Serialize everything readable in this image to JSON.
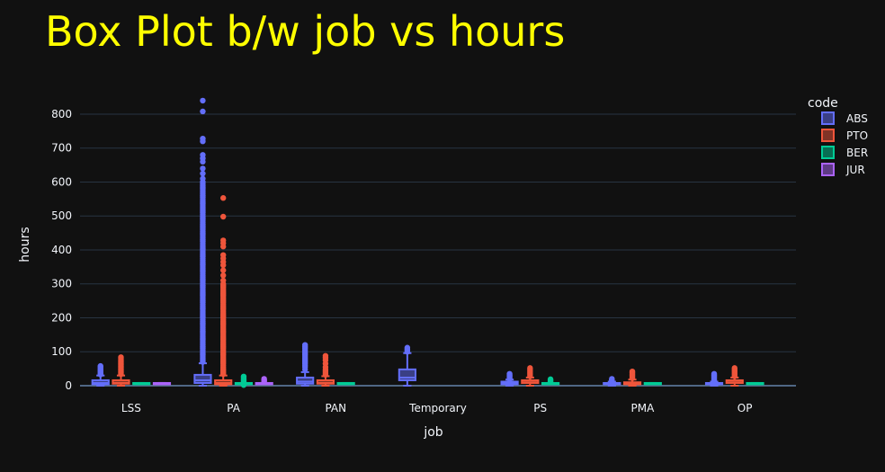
{
  "chart_data": {
    "type": "box",
    "title": "Box Plot b/w job vs hours",
    "xlabel": "job",
    "ylabel": "hours",
    "ylim": [
      0,
      845
    ],
    "yticks": [
      0,
      100,
      200,
      300,
      400,
      500,
      600,
      700,
      800
    ],
    "grid": true,
    "legend": {
      "title": "code",
      "placement": "top-right"
    },
    "categories": [
      "LSS",
      "PA",
      "PAN",
      "Temporary",
      "PS",
      "PMA",
      "OP"
    ],
    "colors": {
      "background": "#111111",
      "grid": "#283442",
      "title": "#ffff00"
    },
    "series": [
      {
        "name": "ABS",
        "color": "#636efa",
        "boxes": [
          {
            "q1": 4,
            "median": 8,
            "q3": 16,
            "lowerfence": 0,
            "upperfence": 30,
            "outliers": [
              33,
              36,
              39,
              42,
              45,
              48,
              51,
              55,
              58
            ]
          },
          {
            "q1": 8,
            "median": 16,
            "q3": 32,
            "lowerfence": 0,
            "upperfence": 66,
            "outliers": [
              70,
              75,
              80,
              85,
              90,
              95,
              100,
              105,
              110,
              115,
              120,
              125,
              130,
              135,
              140,
              145,
              150,
              155,
              160,
              165,
              170,
              175,
              180,
              185,
              190,
              195,
              200,
              205,
              210,
              215,
              220,
              225,
              230,
              235,
              240,
              245,
              250,
              255,
              260,
              265,
              270,
              275,
              280,
              285,
              290,
              295,
              300,
              305,
              310,
              315,
              320,
              325,
              330,
              335,
              340,
              345,
              350,
              355,
              360,
              365,
              370,
              375,
              380,
              385,
              390,
              395,
              400,
              405,
              410,
              415,
              420,
              425,
              430,
              435,
              440,
              445,
              450,
              455,
              460,
              465,
              470,
              475,
              480,
              485,
              490,
              495,
              500,
              505,
              510,
              515,
              520,
              525,
              530,
              535,
              540,
              545,
              550,
              555,
              560,
              565,
              570,
              575,
              580,
              585,
              590,
              595,
              600,
              610,
              625,
              640,
              660,
              670,
              680,
              720,
              728,
              808,
              840
            ]
          },
          {
            "q1": 6,
            "median": 12,
            "q3": 24,
            "lowerfence": 0,
            "upperfence": 40,
            "outliers": [
              48,
              55,
              60,
              65,
              70,
              75,
              80,
              85,
              90,
              95,
              100,
              105,
              110,
              115,
              120
            ]
          },
          {
            "q1": 16,
            "median": 24,
            "q3": 48,
            "lowerfence": 0,
            "upperfence": 96,
            "outliers": [
              100,
              104,
              108,
              112
            ]
          },
          {
            "q1": 4,
            "median": 8,
            "q3": 12,
            "lowerfence": 0,
            "upperfence": 18,
            "outliers": [
              20,
              23,
              26,
              29,
              32,
              35
            ]
          },
          {
            "q1": 4,
            "median": 8,
            "q3": 8,
            "lowerfence": 0,
            "upperfence": 12,
            "outliers": [
              14,
              16,
              18,
              20
            ]
          },
          {
            "q1": 4,
            "median": 8,
            "q3": 8,
            "lowerfence": 0,
            "upperfence": 12,
            "outliers": [
              14,
              17,
              20,
              23,
              26,
              29,
              32,
              35
            ]
          }
        ]
      },
      {
        "name": "PTO",
        "color": "#ef553b",
        "boxes": [
          {
            "q1": 6,
            "median": 8,
            "q3": 16,
            "lowerfence": 0,
            "upperfence": 30,
            "outliers": [
              34,
              38,
              42,
              46,
              50,
              54,
              58,
              62,
              66,
              70,
              75,
              80,
              84
            ]
          },
          {
            "q1": 4,
            "median": 8,
            "q3": 16,
            "lowerfence": 0,
            "upperfence": 30,
            "outliers": [
              34,
              38,
              42,
              46,
              50,
              55,
              60,
              65,
              70,
              75,
              80,
              85,
              90,
              95,
              100,
              105,
              110,
              115,
              120,
              125,
              130,
              135,
              140,
              145,
              150,
              155,
              160,
              165,
              170,
              175,
              180,
              185,
              190,
              195,
              200,
              205,
              210,
              215,
              220,
              225,
              230,
              235,
              240,
              245,
              250,
              255,
              260,
              265,
              270,
              275,
              280,
              285,
              290,
              295,
              300,
              310,
              325,
              340,
              355,
              365,
              375,
              385,
              410,
              420,
              428,
              498,
              553
            ]
          },
          {
            "q1": 6,
            "median": 8,
            "q3": 16,
            "lowerfence": 0,
            "upperfence": 28,
            "outliers": [
              32,
              36,
              40,
              44,
              48,
              55,
              65,
              75,
              82,
              88
            ]
          },
          null,
          {
            "q1": 8,
            "median": 10,
            "q3": 16,
            "lowerfence": 0,
            "upperfence": 24,
            "outliers": [
              28,
              32,
              36,
              40,
              44,
              48,
              52
            ]
          },
          {
            "q1": 4,
            "median": 8,
            "q3": 10,
            "lowerfence": 0,
            "upperfence": 18,
            "outliers": [
              22,
              26,
              30,
              34,
              38,
              42
            ]
          },
          {
            "q1": 8,
            "median": 10,
            "q3": 16,
            "lowerfence": 0,
            "upperfence": 24,
            "outliers": [
              28,
              32,
              36,
              40,
              44,
              48,
              52
            ]
          }
        ]
      },
      {
        "name": "BER",
        "color": "#00cc96",
        "boxes": [
          {
            "q1": 8,
            "median": 8,
            "q3": 8,
            "lowerfence": 8,
            "upperfence": 8,
            "outliers": []
          },
          {
            "q1": 8,
            "median": 8,
            "q3": 8,
            "lowerfence": 8,
            "upperfence": 8,
            "outliers": [
              2,
              4,
              12,
              16,
              20,
              24,
              27
            ]
          },
          {
            "q1": 8,
            "median": 8,
            "q3": 8,
            "lowerfence": 8,
            "upperfence": 8,
            "outliers": []
          },
          null,
          {
            "q1": 8,
            "median": 8,
            "q3": 8,
            "lowerfence": 8,
            "upperfence": 8,
            "outliers": [
              12,
              16,
              19
            ]
          },
          {
            "q1": 8,
            "median": 8,
            "q3": 8,
            "lowerfence": 8,
            "upperfence": 8,
            "outliers": []
          },
          {
            "q1": 8,
            "median": 8,
            "q3": 8,
            "lowerfence": 8,
            "upperfence": 8,
            "outliers": []
          }
        ]
      },
      {
        "name": "JUR",
        "color": "#ab63fa",
        "boxes": [
          {
            "q1": 8,
            "median": 8,
            "q3": 8,
            "lowerfence": 8,
            "upperfence": 8,
            "outliers": []
          },
          {
            "q1": 8,
            "median": 8,
            "q3": 8,
            "lowerfence": 8,
            "upperfence": 8,
            "outliers": [
              12,
              16,
              20
            ]
          },
          null,
          null,
          null,
          null,
          null
        ]
      }
    ]
  }
}
